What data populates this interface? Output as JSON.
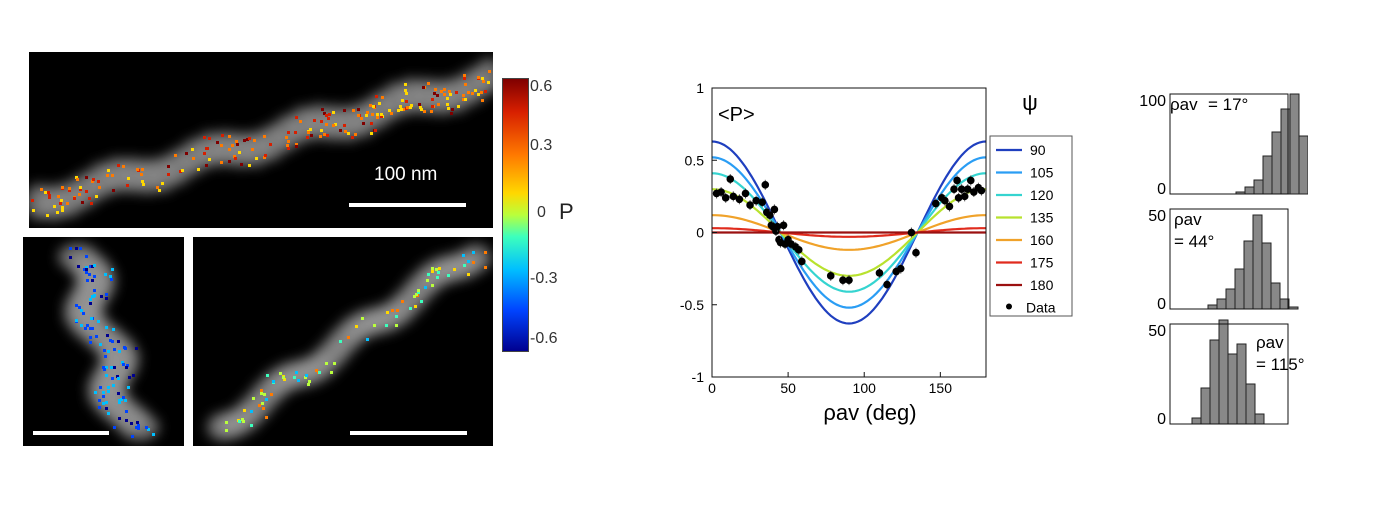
{
  "image_panels": {
    "top": {
      "scale_label": "100 nm"
    },
    "colorbar": {
      "label": "P",
      "ticks": [
        "0.6",
        "0.3",
        "0",
        "-0.3",
        "-0.6"
      ],
      "colors": [
        "#7f0000",
        "#d71f00",
        "#ff7a00",
        "#ffd800",
        "#b9ff3c",
        "#3cffbd",
        "#00bfff",
        "#0044ff",
        "#00008f"
      ]
    }
  },
  "chart_data": [
    {
      "type": "line",
      "panel_label": "<P>",
      "xlabel": "ρav (deg)",
      "xlim": [
        0,
        180
      ],
      "ylim": [
        -1,
        1
      ],
      "xticks": [
        0,
        50,
        100,
        150
      ],
      "yticks": [
        1,
        0.5,
        0,
        -0.5,
        -1
      ],
      "grid": false,
      "legend_title": "ψ",
      "legend_position": "right",
      "series": [
        {
          "name": "90",
          "color": "#1f3fbf",
          "amplitude": 0.63
        },
        {
          "name": "105",
          "color": "#2a9df4",
          "amplitude": 0.52
        },
        {
          "name": "120",
          "color": "#35d4d0",
          "amplitude": 0.41
        },
        {
          "name": "135",
          "color": "#b8e22e",
          "amplitude": 0.3
        },
        {
          "name": "160",
          "color": "#f0a22a",
          "amplitude": 0.12
        },
        {
          "name": "175",
          "color": "#e02b1d",
          "amplitude": 0.03
        },
        {
          "name": "180",
          "color": "#9b1010",
          "amplitude": 0.0
        }
      ],
      "data": {
        "name": "Data",
        "points": [
          [
            3,
            0.27
          ],
          [
            6,
            0.28
          ],
          [
            9,
            0.24
          ],
          [
            12,
            0.37
          ],
          [
            14,
            0.25
          ],
          [
            18,
            0.23
          ],
          [
            22,
            0.27
          ],
          [
            25,
            0.19
          ],
          [
            29,
            0.22
          ],
          [
            33,
            0.21
          ],
          [
            35,
            0.33
          ],
          [
            36,
            0.14
          ],
          [
            38,
            0.12
          ],
          [
            39,
            0.05
          ],
          [
            40,
            0.04
          ],
          [
            41,
            0.16
          ],
          [
            42,
            0.01
          ],
          [
            43,
            0.04
          ],
          [
            44,
            -0.05
          ],
          [
            45,
            -0.07
          ],
          [
            47,
            0.05
          ],
          [
            48,
            -0.08
          ],
          [
            50,
            -0.05
          ],
          [
            52,
            -0.08
          ],
          [
            55,
            -0.1
          ],
          [
            57,
            -0.12
          ],
          [
            59,
            -0.2
          ],
          [
            78,
            -0.3
          ],
          [
            86,
            -0.33
          ],
          [
            90,
            -0.33
          ],
          [
            110,
            -0.28
          ],
          [
            115,
            -0.36
          ],
          [
            121,
            -0.27
          ],
          [
            124,
            -0.25
          ],
          [
            131,
            0.0
          ],
          [
            134,
            -0.14
          ],
          [
            147,
            0.2
          ],
          [
            151,
            0.24
          ],
          [
            153,
            0.22
          ],
          [
            156,
            0.18
          ],
          [
            159,
            0.3
          ],
          [
            161,
            0.36
          ],
          [
            162,
            0.24
          ],
          [
            164,
            0.3
          ],
          [
            166,
            0.25
          ],
          [
            168,
            0.3
          ],
          [
            170,
            0.36
          ],
          [
            172,
            0.28
          ],
          [
            175,
            0.31
          ],
          [
            177,
            0.29
          ]
        ]
      }
    },
    {
      "type": "bar",
      "annotation": [
        "ρav",
        "= 17°"
      ],
      "ylim": [
        0,
        100
      ],
      "yticks": [
        100,
        0
      ],
      "values": [
        2,
        7,
        14,
        38,
        62,
        85,
        100,
        58,
        30,
        5
      ]
    },
    {
      "type": "bar",
      "annotation": [
        "ρav",
        "= 44°"
      ],
      "ylim": [
        0,
        50
      ],
      "yticks": [
        50,
        0
      ],
      "values": [
        2,
        5,
        10,
        20,
        34,
        47,
        33,
        13,
        5,
        1
      ]
    },
    {
      "type": "bar",
      "annotation": [
        "ρav",
        "= 115°"
      ],
      "ylim": [
        0,
        50
      ],
      "yticks": [
        50,
        0
      ],
      "values": [
        3,
        18,
        42,
        52,
        35,
        40,
        20,
        5
      ]
    }
  ]
}
